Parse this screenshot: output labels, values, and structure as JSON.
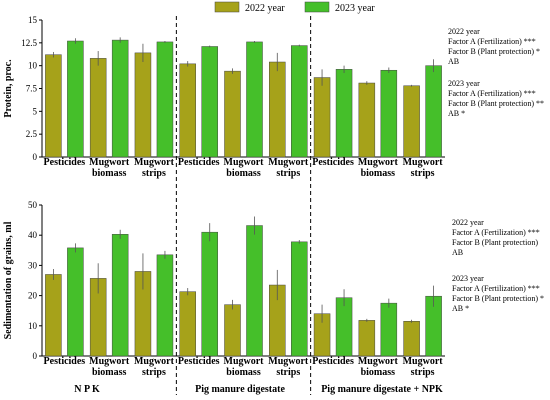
{
  "colors": {
    "y2022": "#a6a21a",
    "y2023": "#45bf2a",
    "edge": "#444444"
  },
  "legend": [
    {
      "label": "2022 year",
      "color_key": "y2022"
    },
    {
      "label": "2023 year",
      "color_key": "y2023"
    }
  ],
  "groups": [
    "N P K",
    "Pig manure digestate",
    "Pig manure digestate + NPK"
  ],
  "categories": [
    [
      "Pesticides"
    ],
    [
      "Mugwort",
      "biomass"
    ],
    [
      "Mugwort",
      "strips"
    ]
  ],
  "chart_data": [
    {
      "type": "bar",
      "ylabel": "Protein, proc.",
      "ylim": [
        0,
        15
      ],
      "yticks": [
        0,
        2.5,
        5,
        7.5,
        10,
        12.5,
        15
      ],
      "categories": [
        "Pesticides",
        "Mugwort biomass",
        "Mugwort strips",
        "Pesticides",
        "Mugwort biomass",
        "Mugwort strips",
        "Pesticides",
        "Mugwort biomass",
        "Mugwort strips"
      ],
      "series": [
        {
          "name": "2022 year",
          "values": [
            11.2,
            10.8,
            11.4,
            10.2,
            9.4,
            10.4,
            8.7,
            8.1,
            7.8
          ],
          "errors": [
            0.3,
            0.8,
            1.0,
            0.3,
            0.3,
            1.0,
            0.9,
            0.2,
            0.1
          ]
        },
        {
          "name": "2023 year",
          "values": [
            12.7,
            12.8,
            12.6,
            12.1,
            12.6,
            12.2,
            9.6,
            9.5,
            10.0
          ],
          "errors": [
            0.3,
            0.3,
            0.1,
            0.1,
            0.1,
            0.1,
            0.4,
            0.3,
            0.7
          ]
        }
      ],
      "stats": [
        [
          "2022 year",
          "Factor A (Fertilization) ***",
          "Factor B (Plant protection) *",
          "AB"
        ],
        [
          "2023 year",
          "Factor A (Fertilization) ***",
          "Factor B (Plant protection) **",
          "AB *"
        ]
      ]
    },
    {
      "type": "bar",
      "ylabel": "Sedimentation of grains, ml",
      "ylim": [
        0,
        50
      ],
      "yticks": [
        0,
        10,
        20,
        30,
        40,
        50
      ],
      "categories": [
        "Pesticides",
        "Mugwort biomass",
        "Mugwort strips",
        "Pesticides",
        "Mugwort biomass",
        "Mugwort strips",
        "Pesticides",
        "Mugwort biomass",
        "Mugwort strips"
      ],
      "series": [
        {
          "name": "2022 year",
          "values": [
            27,
            25.7,
            28,
            21.3,
            17,
            23.5,
            14,
            11.8,
            11.5
          ],
          "errors": [
            1.8,
            5.0,
            6.0,
            1.2,
            1.6,
            5.0,
            3.0,
            0.5,
            0.5
          ]
        },
        {
          "name": "2023 year",
          "values": [
            35.8,
            40.3,
            33.5,
            41,
            43.2,
            37.8,
            19.3,
            17.5,
            19.8
          ],
          "errors": [
            1.5,
            1.5,
            1.3,
            3.0,
            3.0,
            0.6,
            2.8,
            1.5,
            3.5
          ]
        }
      ],
      "stats": [
        [
          "2022 year",
          "Factor A (Fertilization) ***",
          "Factor B (Plant protection)",
          "AB"
        ],
        [
          "2023 year",
          "Factor A (Fertilization) ***",
          "Factor B (Plant protection) *",
          "AB *"
        ]
      ]
    }
  ]
}
